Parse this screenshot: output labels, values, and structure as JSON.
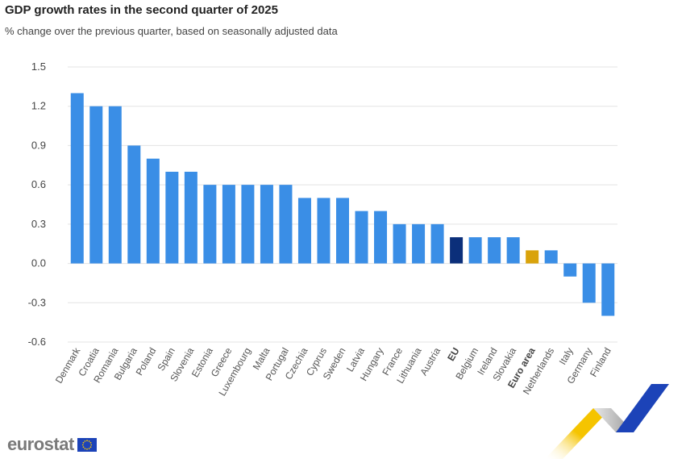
{
  "header": {
    "title": "GDP growth rates in the second quarter of 2025",
    "subtitle": "% change over the previous quarter, based on seasonally adjusted data"
  },
  "branding": {
    "logo_text": "eurostat",
    "flag_icon": "eu-flag-icon"
  },
  "colors": {
    "country": "#3a8ee6",
    "eu": "#0b2f7a",
    "euro_area": "#d9a30b",
    "grid": "#e3e3e3",
    "deco_yellow": "#f5c400",
    "deco_blue": "#1c43b8"
  },
  "chart_data": {
    "type": "bar",
    "title": "GDP growth rates in the second quarter of 2025",
    "subtitle": "% change over the previous quarter, based on seasonally adjusted data",
    "categories": [
      "Denmark",
      "Croatia",
      "Romania",
      "Bulgaria",
      "Poland",
      "Spain",
      "Slovenia",
      "Estonia",
      "Greece",
      "Luxembourg",
      "Malta",
      "Portugal",
      "Czechia",
      "Cyprus",
      "Sweden",
      "Latvia",
      "Hungary",
      "France",
      "Lithuania",
      "Austria",
      "EU",
      "Belgium",
      "Ireland",
      "Slovakia",
      "Euro area",
      "Netherlands",
      "Italy",
      "Germany",
      "Finland"
    ],
    "values": [
      1.3,
      1.2,
      1.2,
      0.9,
      0.8,
      0.7,
      0.7,
      0.6,
      0.6,
      0.6,
      0.6,
      0.6,
      0.5,
      0.5,
      0.5,
      0.4,
      0.4,
      0.3,
      0.3,
      0.3,
      0.2,
      0.2,
      0.2,
      0.2,
      0.1,
      0.1,
      -0.1,
      -0.3,
      -0.4
    ],
    "highlight": {
      "EU": "eu",
      "Euro area": "euro_area"
    },
    "yticks": [
      "1.5",
      "1.2",
      "0.9",
      "0.6",
      "0.3",
      "0.0",
      "-0.3",
      "-0.6"
    ],
    "ylim": [
      -0.6,
      1.5
    ],
    "grid": true,
    "xlabel": "",
    "ylabel": ""
  }
}
